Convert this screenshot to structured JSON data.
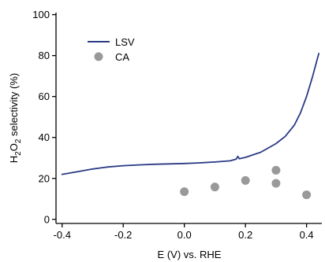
{
  "chart_data": {
    "type": "line",
    "title": "",
    "xlabel": "E (V) vs. RHE",
    "ylabel": {
      "prefix": "H",
      "sub1": "2",
      "mid": "O",
      "sub2": "2",
      "suffix": " selectivity (%)"
    },
    "xlim": [
      -0.42,
      0.45
    ],
    "ylim": [
      -2,
      101
    ],
    "x_ticks": [
      -0.4,
      -0.2,
      0.0,
      0.2,
      0.4
    ],
    "x_tick_labels": [
      "-0.4",
      "-0.2",
      "0.0",
      "0.2",
      "0.4"
    ],
    "y_ticks": [
      0,
      20,
      40,
      60,
      80,
      100
    ],
    "y_tick_labels": [
      "0",
      "20",
      "40",
      "60",
      "80",
      "100"
    ],
    "grid": false,
    "legend_position": "top-left",
    "series": [
      {
        "name": "LSV",
        "kind": "line",
        "color": "#2b3a84",
        "points": [
          [
            -0.4,
            22.0
          ],
          [
            -0.35,
            23.3
          ],
          [
            -0.3,
            24.6
          ],
          [
            -0.25,
            25.6
          ],
          [
            -0.2,
            26.2
          ],
          [
            -0.15,
            26.6
          ],
          [
            -0.1,
            26.9
          ],
          [
            -0.05,
            27.1
          ],
          [
            0.0,
            27.3
          ],
          [
            0.05,
            27.6
          ],
          [
            0.1,
            28.0
          ],
          [
            0.15,
            28.6
          ],
          [
            0.17,
            29.4
          ],
          [
            0.175,
            30.8
          ],
          [
            0.18,
            29.6
          ],
          [
            0.2,
            30.3
          ],
          [
            0.25,
            32.8
          ],
          [
            0.3,
            37.0
          ],
          [
            0.33,
            40.5
          ],
          [
            0.36,
            46.0
          ],
          [
            0.38,
            52.0
          ],
          [
            0.4,
            60.0
          ],
          [
            0.42,
            70.0
          ],
          [
            0.44,
            81.0
          ]
        ]
      },
      {
        "name": "CA",
        "kind": "scatter",
        "color": "#999999",
        "points": [
          [
            0.0,
            13.5
          ],
          [
            0.1,
            15.8
          ],
          [
            0.2,
            19.0
          ],
          [
            0.3,
            24.0
          ],
          [
            0.3,
            17.6
          ],
          [
            0.4,
            12.0
          ]
        ]
      }
    ]
  }
}
